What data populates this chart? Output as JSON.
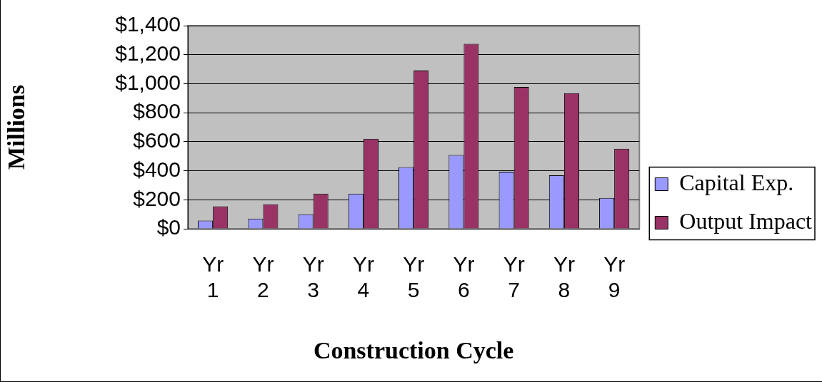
{
  "chart_data": {
    "type": "bar",
    "xlabel": "Construction Cycle",
    "ylabel": "Millions",
    "categories": [
      "Yr 1",
      "Yr 2",
      "Yr 3",
      "Yr 4",
      "Yr 5",
      "Yr 6",
      "Yr 7",
      "Yr 8",
      "Yr 9"
    ],
    "series": [
      {
        "name": "Capital Exp.",
        "color": "#9999ff",
        "values": [
          56,
          70,
          99,
          242,
          425,
          508,
          393,
          369,
          212
        ]
      },
      {
        "name": "Output Impact",
        "color": "#993366",
        "values": [
          155,
          169,
          242,
          620,
          1090,
          1275,
          977,
          935,
          552
        ]
      }
    ],
    "ylim": [
      0,
      1400
    ],
    "yticks": [
      {
        "value": 0,
        "label": "$0"
      },
      {
        "value": 200,
        "label": "$200"
      },
      {
        "value": 400,
        "label": "$400"
      },
      {
        "value": 600,
        "label": "$600"
      },
      {
        "value": 800,
        "label": "$800"
      },
      {
        "value": 1000,
        "label": "$1,000"
      },
      {
        "value": 1200,
        "label": "$1,200"
      },
      {
        "value": 1400,
        "label": "$1,400"
      }
    ],
    "grid": "y",
    "legend": "right"
  }
}
